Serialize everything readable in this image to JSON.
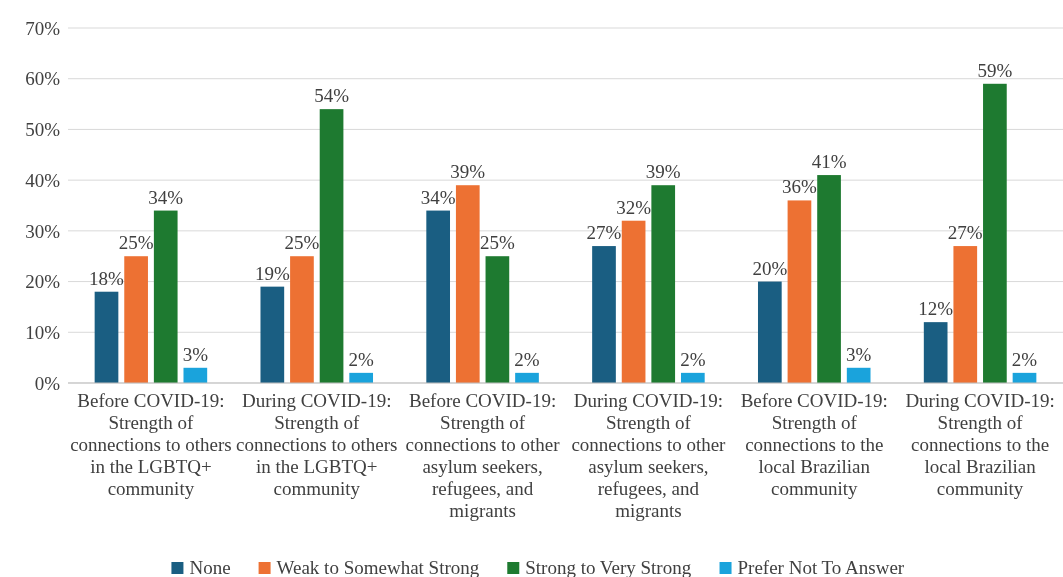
{
  "chart_data": {
    "type": "bar",
    "categories": [
      "Before COVID-19: Strength of connections to others in the LGBTQ+ community",
      "During COVID-19: Strength of connections to others in the LGBTQ+ community",
      "Before COVID-19: Strength of connections to other asylum seekers, refugees, and migrants",
      "During COVID-19: Strength of connections to other asylum seekers, refugees, and migrants",
      "Before COVID-19: Strength of connections to the local Brazilian community",
      "During COVID-19: Strength of connections to the local Brazilian community"
    ],
    "series": [
      {
        "name": "None",
        "color": "#1a5e82",
        "values": [
          18,
          19,
          34,
          27,
          20,
          12
        ],
        "value_labels": [
          "18%",
          "19%",
          "34%",
          "27%",
          "20%",
          "12%"
        ]
      },
      {
        "name": "Weak to Somewhat Strong",
        "color": "#ed7133",
        "values": [
          25,
          25,
          39,
          32,
          36,
          27
        ],
        "value_labels": [
          "25%",
          "25%",
          "39%",
          "32%",
          "36%",
          "27%"
        ]
      },
      {
        "name": "Strong to Very Strong",
        "color": "#1e7a30",
        "values": [
          34,
          54,
          25,
          39,
          41,
          59
        ],
        "value_labels": [
          "34%",
          "54%",
          "25%",
          "39%",
          "41%",
          "59%"
        ]
      },
      {
        "name": "Prefer Not To Answer",
        "color": "#1aa3dc",
        "values": [
          3,
          2,
          2,
          2,
          3,
          2
        ],
        "value_labels": [
          "3%",
          "2%",
          "2%",
          "2%",
          "3%",
          "2%"
        ]
      }
    ],
    "ylim": [
      0,
      70
    ],
    "yticks": [
      {
        "value": 0,
        "label": "0%"
      },
      {
        "value": 10,
        "label": "10%"
      },
      {
        "value": 20,
        "label": "20%"
      },
      {
        "value": 30,
        "label": "30%"
      },
      {
        "value": 40,
        "label": "40%"
      },
      {
        "value": 50,
        "label": "50%"
      },
      {
        "value": 60,
        "label": "60%"
      },
      {
        "value": 70,
        "label": "70%"
      }
    ],
    "grid": "y",
    "legend": "bottom"
  }
}
